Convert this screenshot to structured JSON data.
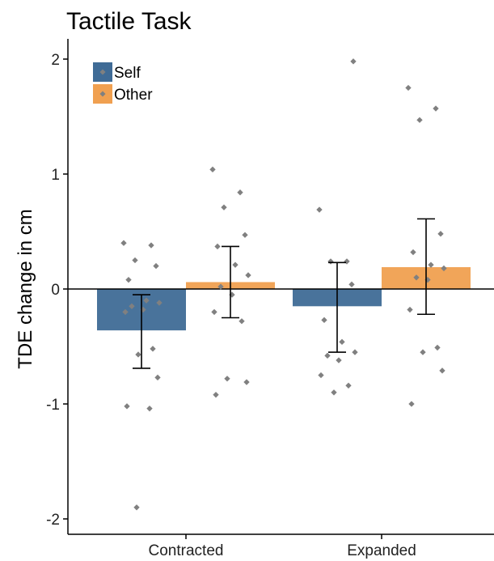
{
  "chart_data": {
    "type": "bar",
    "title": "Tactile Task",
    "xlabel": "",
    "ylabel": "TDE change in cm",
    "ylim": [
      -2.1,
      2.2
    ],
    "yticks": [
      -2,
      -1,
      0,
      1,
      2
    ],
    "ytick_labels": [
      "-2",
      "-1",
      "0",
      "1",
      "2"
    ],
    "categories": [
      "Contracted",
      "Expanded"
    ],
    "legend_position": "top-left",
    "grid": false,
    "series": [
      {
        "name": "Self",
        "color": "#3f6b96",
        "values": [
          -0.36,
          -0.15
        ],
        "error_low": [
          -0.69,
          -0.55
        ],
        "error_high": [
          -0.05,
          0.23
        ],
        "points": [
          [
            0.4,
            0.38,
            0.25,
            0.2,
            0.08,
            -0.1,
            -0.12,
            -0.15,
            -0.18,
            -0.2,
            -0.52,
            -0.57,
            -0.77,
            -1.02,
            -1.04,
            -1.9
          ],
          [
            0.69,
            0.24,
            0.24,
            0.04,
            -0.27,
            -0.46,
            -0.55,
            -0.58,
            -0.62,
            -0.75,
            -0.84,
            -0.9,
            1.98
          ]
        ]
      },
      {
        "name": "Other",
        "color": "#f0a050",
        "values": [
          0.06,
          0.19
        ],
        "error_low": [
          -0.25,
          -0.22
        ],
        "error_high": [
          0.37,
          0.61
        ],
        "points": [
          [
            1.04,
            0.84,
            0.71,
            0.47,
            0.37,
            0.21,
            0.12,
            0.02,
            -0.05,
            -0.2,
            -0.28,
            -0.78,
            -0.81,
            -0.92
          ],
          [
            1.75,
            1.57,
            1.47,
            0.48,
            0.32,
            0.21,
            0.18,
            0.1,
            0.08,
            -0.18,
            -0.51,
            -0.55,
            -0.71,
            -1.0
          ]
        ]
      }
    ]
  }
}
